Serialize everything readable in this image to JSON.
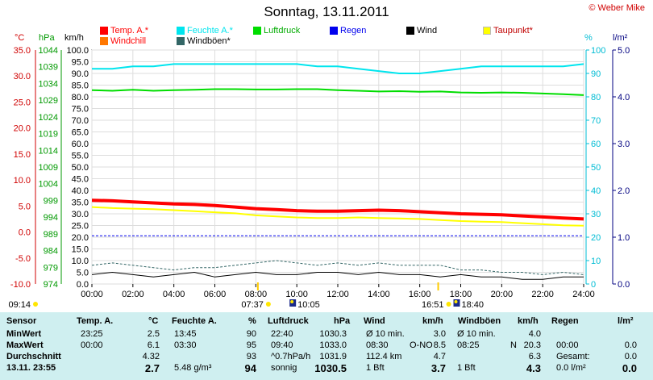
{
  "header": {
    "title": "Sonntag, 13.11.2011",
    "credit": "© Weber Mike"
  },
  "legend": [
    {
      "label": "Temp. A.*",
      "color": "#ff0000"
    },
    {
      "label": "Feuchte A.*",
      "color": "#00e5ee"
    },
    {
      "label": "Luftdruck",
      "color": "#00dd00"
    },
    {
      "label": "Regen",
      "color": "#0000ee"
    },
    {
      "label": "Wind",
      "color": "#000000"
    },
    {
      "label": "Taupunkt*",
      "color": "#ffff00"
    },
    {
      "label": "Windchill",
      "color": "#ff7700"
    },
    {
      "label": "Windböen*",
      "color": "#336666"
    }
  ],
  "units": {
    "temp": "°C",
    "pressure": "hPa",
    "wind": "km/h",
    "humidity": "%",
    "rain": "l/m²"
  },
  "chart_data": {
    "type": "line",
    "x_ticks": [
      "00:00",
      "02:00",
      "04:00",
      "06:00",
      "08:00",
      "10:00",
      "12:00",
      "14:00",
      "16:00",
      "18:00",
      "20:00",
      "22:00",
      "24:00"
    ],
    "x": [
      0,
      1,
      2,
      3,
      4,
      5,
      6,
      7,
      8,
      9,
      10,
      11,
      12,
      13,
      14,
      15,
      16,
      17,
      18,
      19,
      20,
      21,
      22,
      23,
      24
    ],
    "axes": {
      "temp": {
        "ticks": [
          "35.0",
          "30.0",
          "25.0",
          "20.0",
          "15.0",
          "10.0",
          "5.0",
          "0.0",
          "-5.0",
          "-10.0"
        ],
        "ylim": [
          -10,
          35
        ]
      },
      "pressure": {
        "ticks": [
          "1044",
          "1039",
          "1034",
          "1029",
          "1024",
          "1019",
          "1014",
          "1009",
          "1004",
          "999",
          "994",
          "989",
          "984",
          "979",
          "974"
        ],
        "ylim": [
          974,
          1044
        ]
      },
      "wind": {
        "ticks": [
          "100.0",
          "95.0",
          "90.0",
          "85.0",
          "80.0",
          "75.0",
          "70.0",
          "65.0",
          "60.0",
          "55.0",
          "50.0",
          "45.0",
          "40.0",
          "35.0",
          "30.0",
          "25.0",
          "20.0",
          "15.0",
          "10.0",
          "5.0",
          "0.0"
        ],
        "ylim": [
          0,
          100
        ]
      },
      "humidity": {
        "ticks": [
          "100",
          "90",
          "80",
          "70",
          "60",
          "50",
          "40",
          "30",
          "20",
          "10",
          "0"
        ],
        "ylim": [
          0,
          100
        ]
      },
      "rain": {
        "ticks": [
          "5.0",
          "4.0",
          "3.0",
          "2.0",
          "1.0",
          "0.0"
        ],
        "ylim": [
          0,
          5
        ]
      }
    },
    "series": [
      {
        "name": "Temp. A.*",
        "axis": "temp",
        "color": "#ff0000",
        "width": 4,
        "values": [
          6.1,
          6.0,
          5.8,
          5.6,
          5.4,
          5.3,
          5.1,
          4.8,
          4.5,
          4.3,
          4.1,
          4.0,
          4.0,
          4.1,
          4.2,
          4.1,
          3.9,
          3.7,
          3.5,
          3.4,
          3.3,
          3.1,
          2.9,
          2.7,
          2.5
        ]
      },
      {
        "name": "Feuchte A.*",
        "axis": "humidity",
        "color": "#00e5ee",
        "width": 2,
        "values": [
          92,
          92,
          93,
          93,
          94,
          94,
          94,
          94,
          94,
          94,
          94,
          93,
          93,
          92,
          91,
          90,
          90,
          91,
          92,
          93,
          93,
          93,
          93,
          93,
          94
        ]
      },
      {
        "name": "Luftdruck",
        "axis": "pressure",
        "color": "#00dd00",
        "width": 2,
        "values": [
          1032.0,
          1031.8,
          1032.1,
          1031.8,
          1032.0,
          1032.1,
          1032.3,
          1032.3,
          1032.2,
          1032.2,
          1032.3,
          1032.3,
          1032.0,
          1031.8,
          1031.6,
          1031.7,
          1031.5,
          1031.6,
          1031.3,
          1031.2,
          1031.3,
          1031.2,
          1031.0,
          1030.8,
          1030.5
        ]
      },
      {
        "name": "Taupunkt*",
        "axis": "temp",
        "color": "#ffff00",
        "width": 2,
        "values": [
          4.8,
          4.6,
          4.5,
          4.4,
          4.2,
          4.0,
          3.8,
          3.6,
          3.2,
          3.0,
          2.8,
          2.7,
          2.7,
          2.8,
          2.7,
          2.6,
          2.5,
          2.3,
          2.1,
          2.0,
          1.9,
          1.7,
          1.5,
          1.3,
          1.2
        ]
      },
      {
        "name": "Wind",
        "axis": "wind",
        "color": "#000000",
        "width": 1,
        "values": [
          4,
          5,
          4,
          3,
          4,
          5,
          3,
          4,
          5,
          4,
          4,
          5,
          5,
          4,
          5,
          4,
          4,
          3,
          4,
          3,
          3,
          2,
          2,
          3,
          3
        ]
      },
      {
        "name": "Windböen*",
        "axis": "wind",
        "color": "#336666",
        "width": 1,
        "dashed": true,
        "values": [
          8,
          9,
          8,
          7,
          6,
          7,
          7,
          8,
          9,
          10,
          9,
          8,
          9,
          8,
          9,
          8,
          8,
          8,
          6,
          6,
          5,
          5,
          4,
          5,
          4
        ]
      },
      {
        "name": "Regen",
        "axis": "rain",
        "color": "#0000ee",
        "width": 1,
        "dashed": true,
        "values": [
          1.03,
          1.03,
          1.03,
          1.03,
          1.03,
          1.03,
          1.03,
          1.03,
          1.03,
          1.03,
          1.03,
          1.03,
          1.03,
          1.03,
          1.03,
          1.03,
          1.03,
          1.03,
          1.03,
          1.03,
          1.03,
          1.03,
          1.03,
          1.03,
          1.03
        ]
      }
    ],
    "events": [
      {
        "label": "09:14",
        "x": 0.0,
        "kind": "sun"
      },
      {
        "label": "07:37",
        "x": 8.1,
        "kind": "sun"
      },
      {
        "label": "10:05",
        "x": 10.0,
        "kind": "moon"
      },
      {
        "label": "16:51",
        "x": 16.9,
        "kind": "sun"
      },
      {
        "label": "18:40",
        "x": 18.0,
        "kind": "moon"
      }
    ]
  },
  "table": {
    "headers": [
      "Sensor",
      "Temp. A.",
      "°C",
      "Feuchte A.",
      "%",
      "Luftdruck",
      "hPa",
      "Wind",
      "km/h",
      "Windböen",
      "km/h",
      "Regen",
      "l/m²"
    ],
    "rows": [
      {
        "label": "MinWert",
        "temp_time": "23:25",
        "temp": "2.5",
        "hum_time": "13:45",
        "hum": "90",
        "press_time": "22:40",
        "press": "1030.3",
        "wind_desc": "Ø 10 min.",
        "wind": "3.0",
        "gust_desc": "Ø 10 min.",
        "gust": "4.0",
        "rain_desc": "",
        "rain": ""
      },
      {
        "label": "MaxWert",
        "temp_time": "00:00",
        "temp": "6.1",
        "hum_time": "03:30",
        "hum": "95",
        "press_time": "09:40",
        "press": "1033.0",
        "wind_desc": "08:30",
        "wind_dir": "O-NO",
        "wind": "8.5",
        "gust_desc": "08:25",
        "gust_dir": "N",
        "gust": "20.3",
        "rain_desc": "00:00",
        "rain": "0.0"
      },
      {
        "label": "Durchschnitt",
        "temp_time": "",
        "temp": "4.32",
        "hum_time": "",
        "hum": "93",
        "press_time": "^0.7hPa/h",
        "press": "1031.9",
        "wind_desc": "112.4 km",
        "wind": "4.7",
        "gust_desc": "",
        "gust": "6.3",
        "rain_desc": "Gesamt:",
        "rain": "0.0"
      },
      {
        "label": "13.11.  23:55",
        "temp_time": "",
        "temp": "2.7",
        "hum_time": "5.48 g/m³",
        "hum": "94",
        "press_time": "sonnig",
        "press": "1030.5",
        "wind_desc": "1 Bft",
        "wind": "3.7",
        "gust_desc": "1 Bft",
        "gust": "4.3",
        "rain_desc": "0.0 l/m²",
        "rain": "0.0"
      }
    ]
  }
}
